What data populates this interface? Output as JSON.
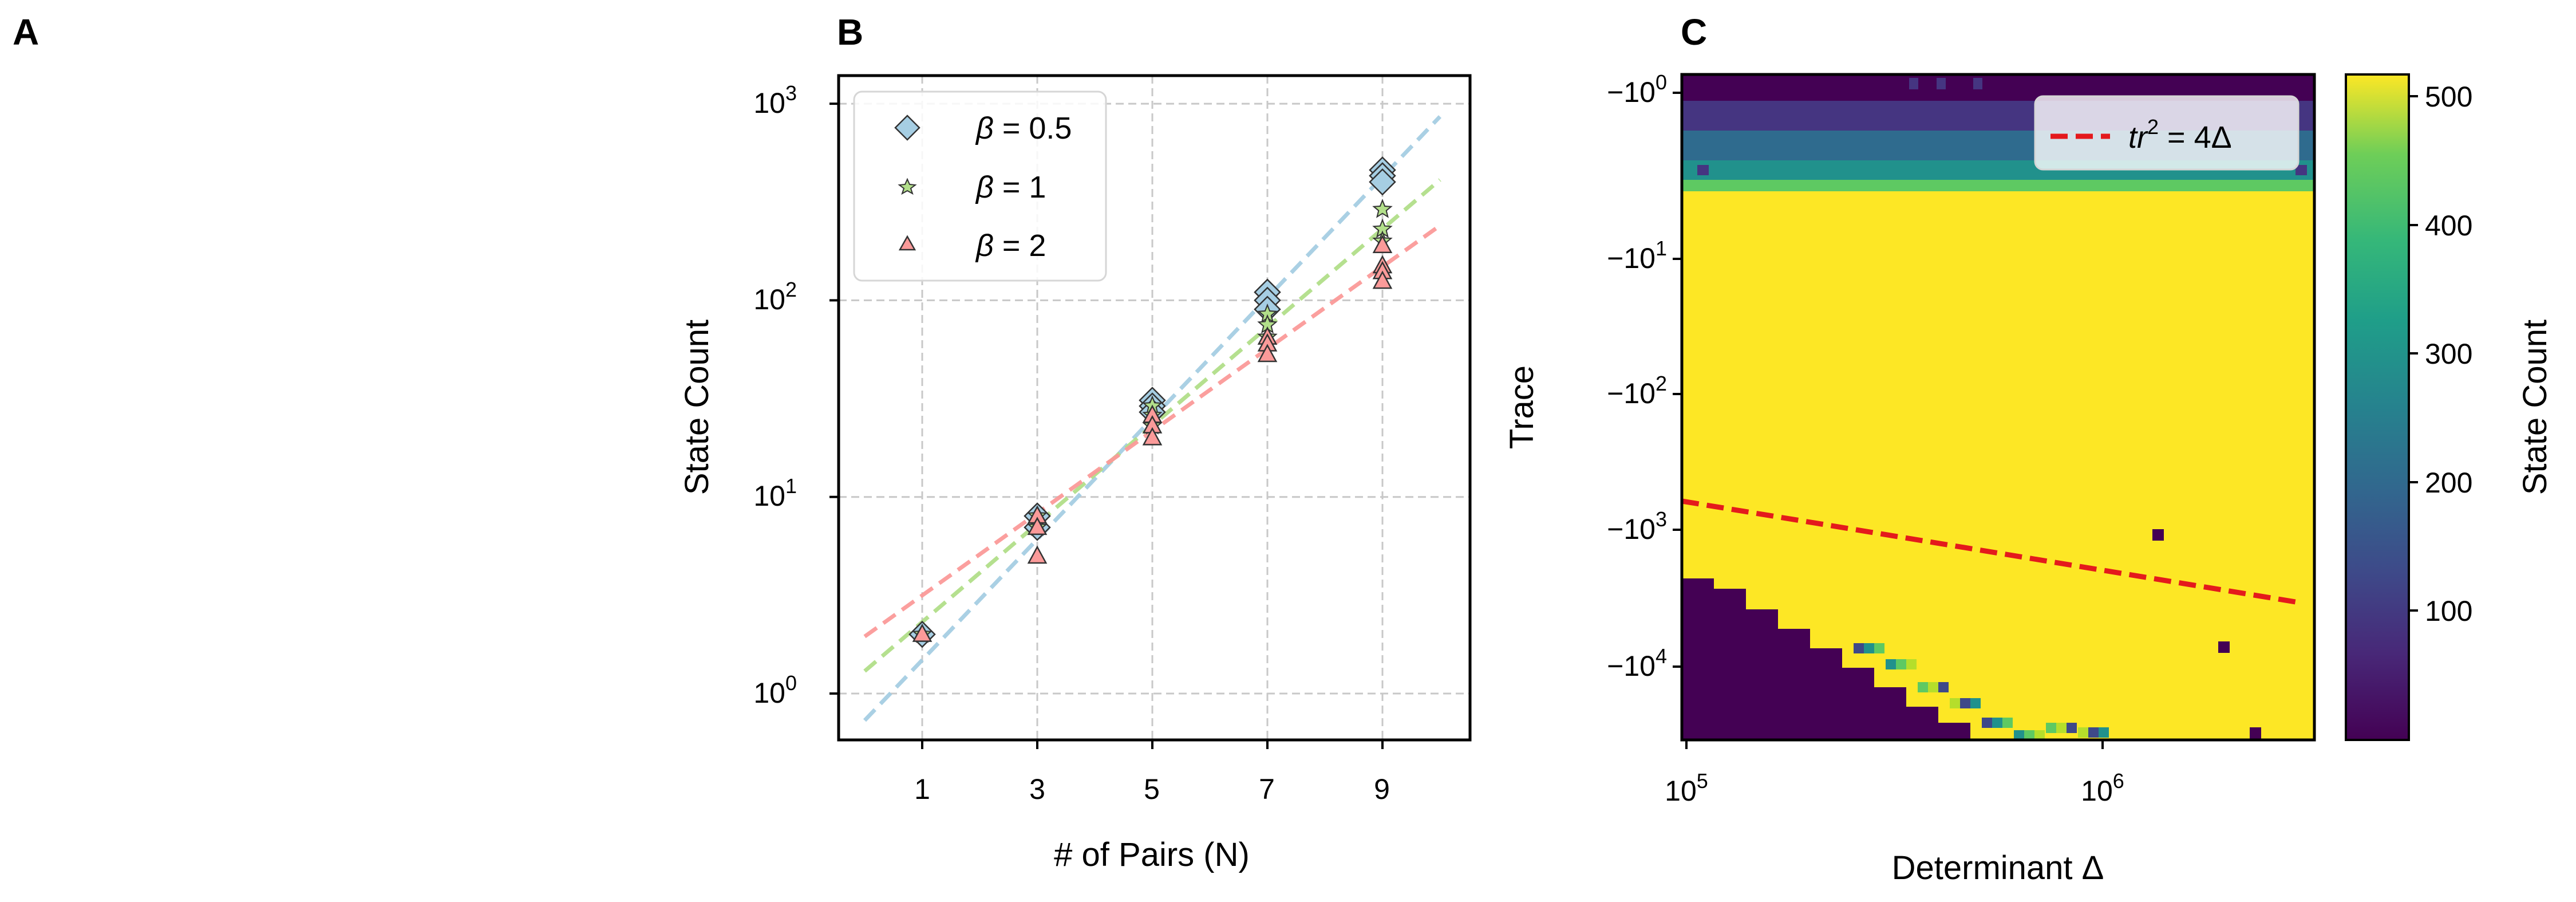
{
  "panel_labels": [
    "A",
    "B",
    "C"
  ],
  "panel_b": {
    "xlabel": "# of Pairs (N)",
    "ylabel": "State Count",
    "xticks": [
      "1",
      "3",
      "5",
      "7",
      "9"
    ],
    "yticks": [
      {
        "base": "10",
        "exp": "0"
      },
      {
        "base": "10",
        "exp": "1"
      },
      {
        "base": "10",
        "exp": "2"
      },
      {
        "base": "10",
        "exp": "3"
      }
    ],
    "legend": [
      {
        "sym": "β",
        "rest": " = 0.5"
      },
      {
        "sym": "β",
        "rest": " = 1"
      },
      {
        "sym": "β",
        "rest": " = 2"
      }
    ]
  },
  "panel_c": {
    "xlabel": "Determinant Δ",
    "ylabel": "Trace",
    "xticks": [
      {
        "base": "10",
        "exp": "5"
      },
      {
        "base": "10",
        "exp": "6"
      }
    ],
    "yticks": [
      {
        "base": "−10",
        "exp": "0"
      },
      {
        "base": "−10",
        "exp": "1"
      },
      {
        "base": "−10",
        "exp": "2"
      },
      {
        "base": "−10",
        "exp": "3"
      },
      {
        "base": "−10",
        "exp": "4"
      }
    ],
    "legend": {
      "italic": "tr",
      "sup": "2",
      "rest": " = 4Δ"
    },
    "colorbar_label": "State Count",
    "colorbar_ticks": [
      "100",
      "200",
      "300",
      "400",
      "500"
    ]
  },
  "chart_data": [
    {
      "type": "scatter",
      "x_scale": "linear",
      "y_scale": "log",
      "xlim": [
        -0.6,
        10.6
      ],
      "ylim": [
        0.55,
        1300
      ],
      "grid": true,
      "legend_position": "top-left",
      "series": [
        {
          "name": "β = 0.5",
          "marker": "diamond",
          "color": "#a6cee3",
          "x": [
            1,
            3,
            3,
            5,
            5,
            5,
            7,
            7,
            7,
            9,
            9,
            9
          ],
          "y": [
            2,
            8,
            7,
            31,
            29,
            27,
            110,
            100,
            90,
            460,
            430,
            400
          ],
          "fit": {
            "x": [
              0,
              10
            ],
            "y": [
              0.73,
              860
            ]
          }
        },
        {
          "name": "β = 1",
          "marker": "star",
          "color": "#b2df8a",
          "x": [
            1,
            3,
            3,
            5,
            5,
            5,
            7,
            7,
            7,
            9,
            9,
            9
          ],
          "y": [
            2,
            8,
            7,
            29,
            26,
            23,
            85,
            75,
            65,
            290,
            230,
            200
          ],
          "fit": {
            "x": [
              0,
              10
            ],
            "y": [
              1.3,
              410
            ]
          }
        },
        {
          "name": "β = 2",
          "marker": "triangle",
          "color": "#fb9a99",
          "x": [
            1,
            3,
            3,
            3,
            5,
            5,
            5,
            7,
            7,
            7,
            9,
            9,
            9,
            9
          ],
          "y": [
            2,
            8,
            7,
            5,
            26,
            23,
            20,
            65,
            60,
            53,
            190,
            150,
            140,
            125
          ],
          "fit": {
            "x": [
              0,
              10
            ],
            "y": [
              1.95,
              240
            ]
          }
        }
      ]
    },
    {
      "type": "heatmap",
      "x_scale": "log",
      "y_scale": "symlog-negative",
      "xlim": [
        100000,
        3000000
      ],
      "ylim": [
        -0.7,
        -35000
      ],
      "colormap": "viridis",
      "value_range": [
        0,
        512
      ],
      "regions": [
        {
          "trace_range": [
            -0.7,
            -1.6
          ],
          "state_count": 40
        },
        {
          "trace_range": [
            -1.6,
            -2.5
          ],
          "state_count": 90
        },
        {
          "trace_range": [
            -2.5,
            -3.3
          ],
          "state_count": 180
        },
        {
          "trace_range": [
            -3.3,
            -4.0
          ],
          "state_count": 310
        },
        {
          "trace_range": [
            -4.0,
            -4.8
          ],
          "state_count": 420
        },
        {
          "trace_range": [
            -4.8,
            -35000
          ],
          "state_count": 512
        },
        {
          "below_boundary": "trace less than about -2*sqrt(Δ)",
          "state_count": 3
        }
      ],
      "line": {
        "label": "tr² = 4Δ",
        "color": "#e41a1c",
        "style": "dashed",
        "x": [
          100000,
          3000000
        ],
        "y": [
          -632,
          -3464
        ]
      }
    }
  ]
}
